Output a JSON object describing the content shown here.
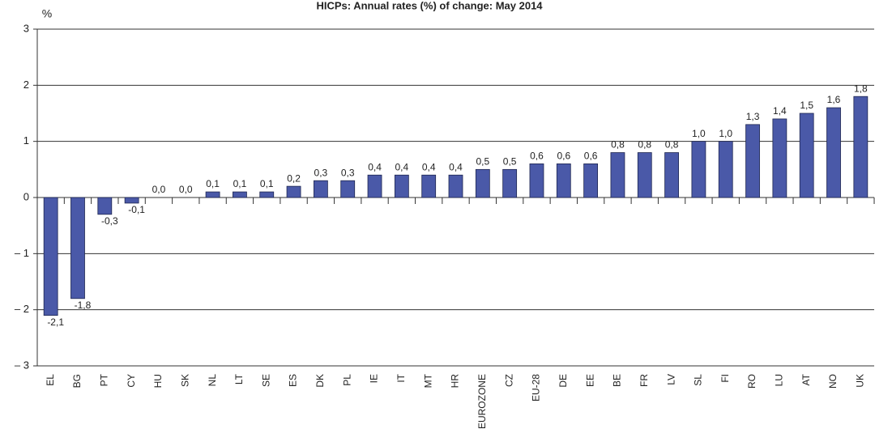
{
  "chart_data": {
    "type": "bar",
    "title": "HICPs: Annual rates (%) of change: May 2014",
    "y_label": "%",
    "categories": [
      "EL",
      "BG",
      "PT",
      "CY",
      "HU",
      "SK",
      "NL",
      "LT",
      "SE",
      "ES",
      "DK",
      "PL",
      "IE",
      "IT",
      "MT",
      "HR",
      "EUROZONE",
      "CZ",
      "EU-28",
      "DE",
      "EE",
      "BE",
      "FR",
      "LV",
      "SL",
      "FI",
      "RO",
      "LU",
      "AT",
      "NO",
      "UK"
    ],
    "values": [
      -2.1,
      -1.8,
      -0.3,
      -0.1,
      0.0,
      0.0,
      0.1,
      0.1,
      0.1,
      0.2,
      0.3,
      0.3,
      0.4,
      0.4,
      0.4,
      0.4,
      0.5,
      0.5,
      0.6,
      0.6,
      0.6,
      0.8,
      0.8,
      0.8,
      1.0,
      1.0,
      1.3,
      1.4,
      1.5,
      1.6,
      1.8
    ],
    "value_labels": [
      "-2,1",
      "-1,8",
      "-0,3",
      "-0,1",
      "0,0",
      "0,0",
      "0,1",
      "0,1",
      "0,1",
      "0,2",
      "0,3",
      "0,3",
      "0,4",
      "0,4",
      "0,4",
      "0,4",
      "0,5",
      "0,5",
      "0,6",
      "0,6",
      "0,6",
      "0,8",
      "0,8",
      "0,8",
      "1,0",
      "1,0",
      "1,3",
      "1,4",
      "1,5",
      "1,6",
      "1,8"
    ],
    "color": "#4a59a8",
    "ylim": [
      -3,
      3
    ],
    "yticks": [
      {
        "value": -3,
        "label": "– 3"
      },
      {
        "value": -2,
        "label": "– 2"
      },
      {
        "value": -1,
        "label": "– 1"
      },
      0,
      1,
      2,
      3
    ],
    "grid": true
  }
}
